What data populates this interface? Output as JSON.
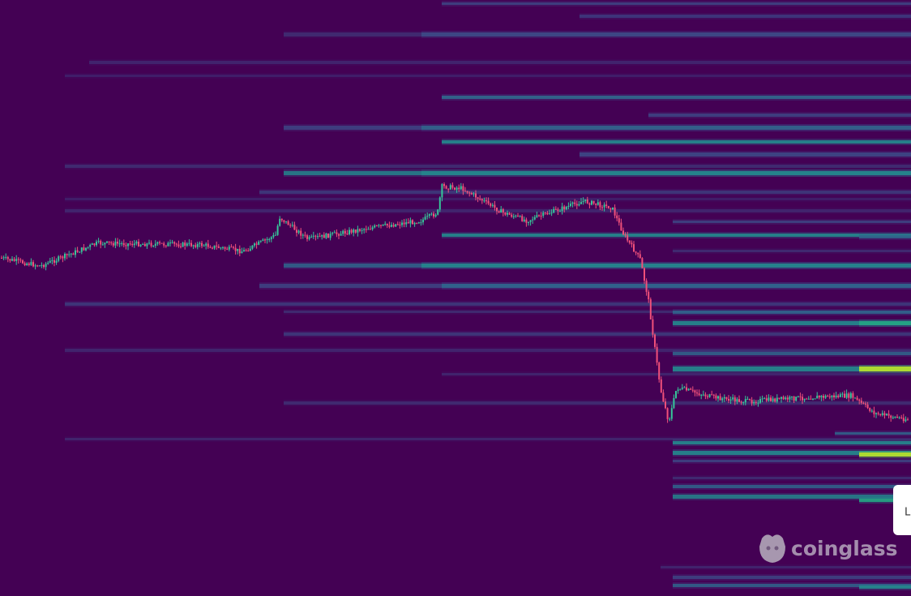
{
  "watermark": {
    "text": "coinglass"
  },
  "tooltip": {
    "text": "L"
  }
}
